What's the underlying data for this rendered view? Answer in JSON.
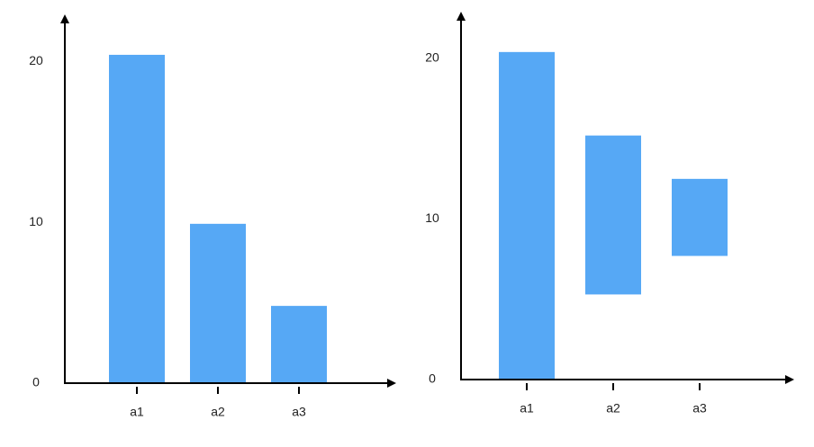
{
  "chart_data": [
    {
      "type": "bar",
      "categories": [
        "a1",
        "a2",
        "a3"
      ],
      "values": [
        20.4,
        9.9,
        4.8
      ],
      "color": "#56a8f5",
      "ylim": [
        0,
        22.8
      ],
      "yticks": [
        0,
        10,
        20
      ]
    },
    {
      "type": "range-bar",
      "categories": [
        "a1",
        "a2",
        "a3"
      ],
      "low": [
        0,
        5.3,
        7.7
      ],
      "high": [
        20.4,
        15.2,
        12.5
      ],
      "color": "#56a8f5",
      "ylim": [
        0,
        22.8
      ],
      "yticks": [
        0,
        10,
        20
      ]
    }
  ]
}
